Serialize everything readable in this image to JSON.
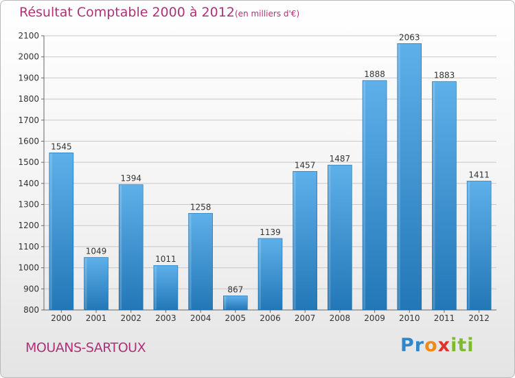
{
  "header": {
    "title": "Résultat Comptable 2000 à 2012",
    "subtitle": "(en milliers d'€)"
  },
  "footer": {
    "commune": "MOUANS-SARTOUX",
    "logo": "Proxiti",
    "logo_icon": "proxiti-logo"
  },
  "colors": {
    "title": "#b0307a",
    "bar_top": "#5eb0ea",
    "bar_bottom": "#2277b6",
    "grid": "#c8c8c8"
  },
  "chart_data": {
    "type": "bar",
    "categories": [
      "2000",
      "2001",
      "2002",
      "2003",
      "2004",
      "2005",
      "2006",
      "2007",
      "2008",
      "2009",
      "2010",
      "2011",
      "2012"
    ],
    "values": [
      1545,
      1049,
      1394,
      1011,
      1258,
      867,
      1139,
      1457,
      1487,
      1888,
      2063,
      1883,
      1411
    ],
    "title": "Résultat Comptable 2000 à 2012",
    "subtitle": "(en milliers d'€)",
    "xlabel": "",
    "ylabel": "",
    "ylim": [
      800,
      2100
    ],
    "yticks": [
      800,
      900,
      1000,
      1100,
      1200,
      1300,
      1400,
      1500,
      1600,
      1700,
      1800,
      1900,
      2000,
      2100
    ],
    "grid": true,
    "legend": "none"
  }
}
